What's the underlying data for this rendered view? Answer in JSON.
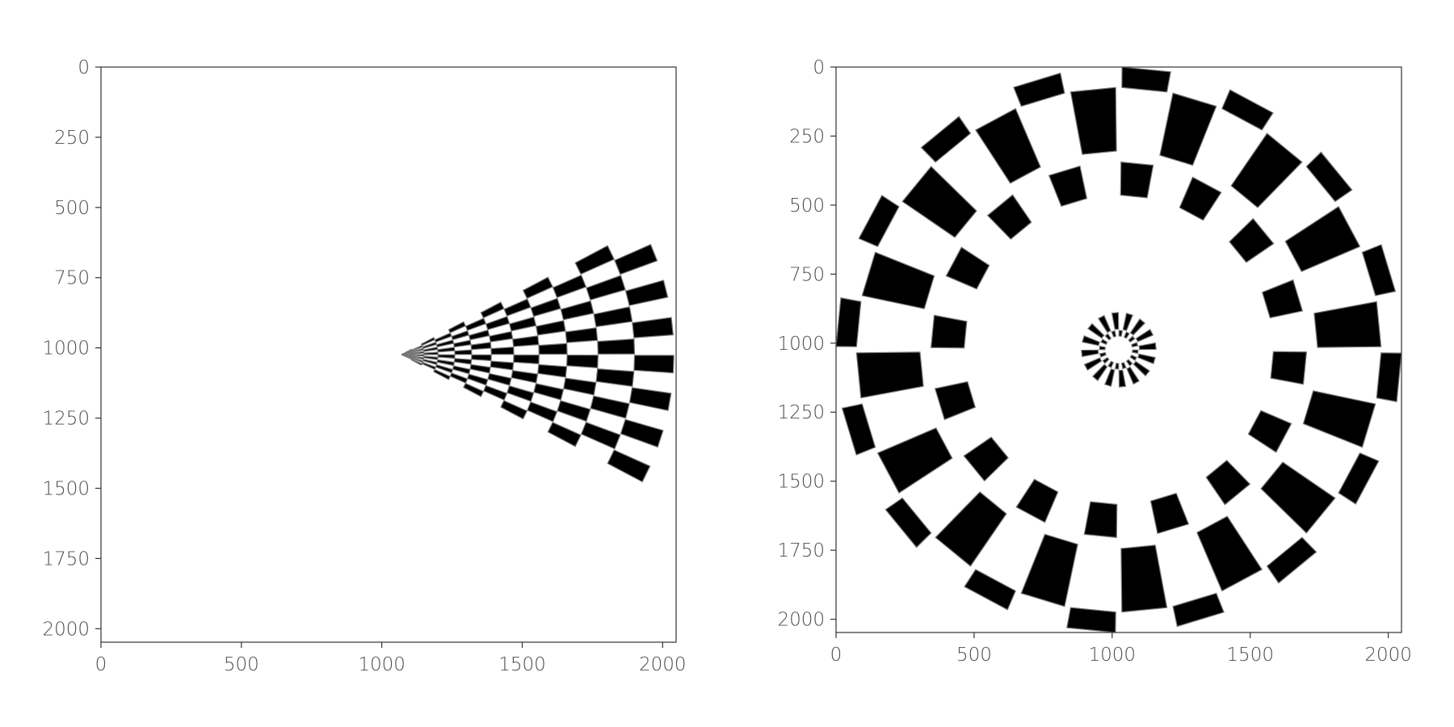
{
  "chart_data": [
    {
      "type": "heatmap",
      "description_kind": "image-plot of a radial checkerboard pattern (polar-warped)",
      "xlim": [
        0,
        2048
      ],
      "ylim": [
        2048,
        0
      ],
      "y_inverted": true,
      "xticks": [
        0,
        500,
        1000,
        1500,
        2000
      ],
      "yticks": [
        0,
        250,
        500,
        750,
        1000,
        1250,
        1500,
        1750,
        2000
      ],
      "xtick_labels": [
        "0",
        "500",
        "1000",
        "1500",
        "2000"
      ],
      "ytick_labels": [
        "0",
        "250",
        "500",
        "750",
        "1000",
        "1250",
        "1500",
        "1750",
        "2000"
      ],
      "grid": false,
      "pattern": {
        "shape": "fan",
        "apex": [
          1070,
          1024
        ],
        "start_angle_deg": -28,
        "end_angle_deg": 28,
        "angular_sectors": 14,
        "radial_rings": [
          0,
          40,
          80,
          130,
          190,
          250,
          320,
          400,
          490,
          590,
          700,
          830,
          970
        ]
      }
    },
    {
      "type": "heatmap",
      "description_kind": "image-plot of a radial checkerboard pattern (polar-warped)",
      "xlim": [
        0,
        2048
      ],
      "ylim": [
        2048,
        0
      ],
      "y_inverted": true,
      "xticks": [
        0,
        500,
        1000,
        1500,
        2000
      ],
      "yticks": [
        0,
        250,
        500,
        750,
        1000,
        1250,
        1500,
        1750,
        2000
      ],
      "xtick_labels": [
        "0",
        "500",
        "1000",
        "1500",
        "2000"
      ],
      "ytick_labels": [
        "0",
        "250",
        "500",
        "750",
        "1000",
        "1250",
        "1500",
        "1750",
        "2000"
      ],
      "grid": false,
      "pattern": {
        "shape": "rings",
        "center": [
          1024,
          1024
        ],
        "angular_sectors": 32,
        "radial_rings": [
          [
            50,
            70
          ],
          [
            75,
            135
          ],
          [
            560,
            680
          ],
          [
            720,
            950
          ],
          [
            950,
            1024
          ]
        ]
      }
    }
  ]
}
